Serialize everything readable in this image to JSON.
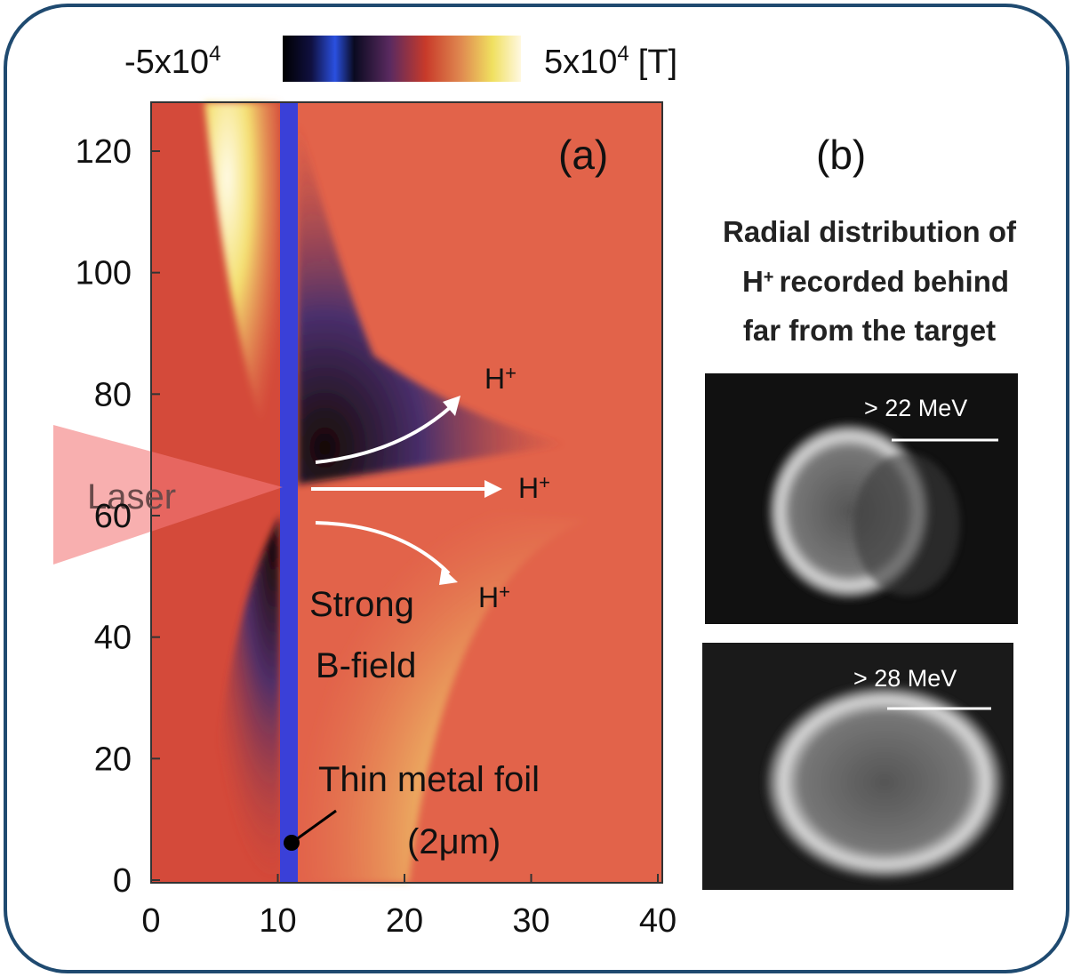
{
  "colorbar": {
    "min_base": "-5x10",
    "min_exp": "4",
    "max_base": "5x10",
    "max_exp": "4",
    "unit": "[T]"
  },
  "panel_a": {
    "label": "(a)",
    "yticks": [
      0,
      20,
      40,
      60,
      80,
      100,
      120
    ],
    "xticks": [
      0,
      10,
      20,
      30,
      40
    ],
    "laser": "Laser",
    "ion": "H",
    "ion_charge": "+",
    "b_field": [
      "Strong",
      "B-field"
    ],
    "foil": [
      "Thin metal foil",
      "(2μm)"
    ]
  },
  "panel_b": {
    "label": "(b)",
    "caption": [
      "Radial distribution of",
      "recorded  behind",
      "far from the target"
    ],
    "ion": "H",
    "ion_charge": "+",
    "images": [
      "> 22 MeV",
      "> 28 MeV"
    ]
  }
}
